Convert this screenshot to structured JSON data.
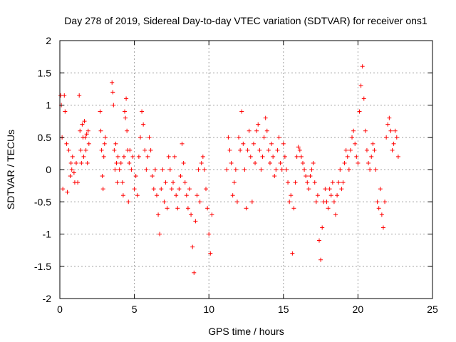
{
  "chart_data": {
    "type": "scatter",
    "title": "Day 278 of 2019, Sidereal Day-to-day VTEC variation (SDTVAR) for receiver ons1",
    "xlabel": "GPS time / hours",
    "ylabel": "SDTVAR / TECUs",
    "xlim": [
      0,
      25
    ],
    "ylim": [
      -2,
      2
    ],
    "xticks": [
      0,
      5,
      10,
      15,
      20,
      25
    ],
    "yticks": [
      -2,
      -1.5,
      -1,
      -0.5,
      0,
      0.5,
      1,
      1.5,
      2
    ],
    "grid": true,
    "marker": "+",
    "color": "#ff0000",
    "series": [
      {
        "name": "SDTVAR",
        "x": [
          0.05,
          0.1,
          0.15,
          0.2,
          0.3,
          0.35,
          0.45,
          0.5,
          0.6,
          0.7,
          0.75,
          0.8,
          0.85,
          0.95,
          1.0,
          1.1,
          1.2,
          1.3,
          1.35,
          1.4,
          1.45,
          1.5,
          1.55,
          1.6,
          1.65,
          1.7,
          1.75,
          1.8,
          1.85,
          1.9,
          1.95,
          2.7,
          2.75,
          2.8,
          2.85,
          2.9,
          2.95,
          3.0,
          3.05,
          3.5,
          3.55,
          3.6,
          3.65,
          3.7,
          3.75,
          3.8,
          3.85,
          3.9,
          4.0,
          4.1,
          4.2,
          4.25,
          4.3,
          4.35,
          4.4,
          4.45,
          4.5,
          4.55,
          4.6,
          4.65,
          4.7,
          4.8,
          4.9,
          5.0,
          5.1,
          5.2,
          5.3,
          5.4,
          5.5,
          5.6,
          5.7,
          5.8,
          5.9,
          6.0,
          6.1,
          6.2,
          6.3,
          6.4,
          6.5,
          6.6,
          6.7,
          6.8,
          6.9,
          7.0,
          7.1,
          7.2,
          7.3,
          7.4,
          7.5,
          7.6,
          7.7,
          7.8,
          7.9,
          8.0,
          8.1,
          8.2,
          8.3,
          8.4,
          8.5,
          8.6,
          8.7,
          8.8,
          8.9,
          9.0,
          9.1,
          9.2,
          9.3,
          9.4,
          9.5,
          9.6,
          9.7,
          9.8,
          9.9,
          10.0,
          10.1,
          10.2,
          11.2,
          11.3,
          11.4,
          11.5,
          11.6,
          11.7,
          11.8,
          11.9,
          12.0,
          12.1,
          12.2,
          12.3,
          12.4,
          12.5,
          12.6,
          12.7,
          12.8,
          12.9,
          13.0,
          13.1,
          13.2,
          13.3,
          13.4,
          13.5,
          13.6,
          13.7,
          13.8,
          13.9,
          14.0,
          14.1,
          14.2,
          14.3,
          14.4,
          14.5,
          14.6,
          14.7,
          14.8,
          14.9,
          15.0,
          15.1,
          15.2,
          15.3,
          15.4,
          15.5,
          15.6,
          15.7,
          15.8,
          15.9,
          16.0,
          16.1,
          16.2,
          16.3,
          16.4,
          16.5,
          16.6,
          16.7,
          16.8,
          16.9,
          17.0,
          17.1,
          17.2,
          17.3,
          17.4,
          17.5,
          17.6,
          17.7,
          17.8,
          17.9,
          18.0,
          18.1,
          18.2,
          18.3,
          18.4,
          18.5,
          18.6,
          18.7,
          18.8,
          18.9,
          19.0,
          19.1,
          19.2,
          19.3,
          19.4,
          19.5,
          19.6,
          19.7,
          19.8,
          19.9,
          20.0,
          20.1,
          20.2,
          20.3,
          20.4,
          20.5,
          20.6,
          20.7,
          20.8,
          20.9,
          21.0,
          21.1,
          21.2,
          21.3,
          21.4,
          21.5,
          21.6,
          21.7,
          21.8,
          21.9,
          22.0,
          22.1,
          22.2,
          22.3,
          22.4,
          22.5,
          22.6,
          22.7
        ],
        "y": [
          1.15,
          1.0,
          0.5,
          -0.3,
          1.15,
          0.9,
          0.4,
          -0.35,
          0.3,
          -0.1,
          0.1,
          0.0,
          0.2,
          -0.05,
          -0.2,
          0.1,
          -0.2,
          1.15,
          0.6,
          0.3,
          0.1,
          0.7,
          0.5,
          0.2,
          0.75,
          0.5,
          0.3,
          0.55,
          0.1,
          0.6,
          0.4,
          0.9,
          0.6,
          0.3,
          -0.1,
          -0.3,
          0.2,
          0.4,
          0.5,
          1.35,
          1.2,
          1.0,
          0.3,
          0.0,
          0.4,
          0.1,
          -0.2,
          0.2,
          0.0,
          0.1,
          -0.2,
          -0.4,
          0.2,
          0.9,
          0.8,
          1.1,
          0.6,
          0.3,
          -0.5,
          0.1,
          0.3,
          0.0,
          0.2,
          -0.3,
          -0.1,
          -0.4,
          0.2,
          0.5,
          0.9,
          0.7,
          0.3,
          0.0,
          0.2,
          0.5,
          0.3,
          -0.1,
          -0.3,
          0.0,
          -0.4,
          -0.7,
          -1.0,
          -0.3,
          0.0,
          -0.5,
          -0.2,
          -0.6,
          0.2,
          0.0,
          -0.3,
          -0.2,
          0.2,
          -0.4,
          -0.6,
          -0.3,
          -0.1,
          0.4,
          0.1,
          -0.2,
          -0.4,
          -0.6,
          -0.3,
          -0.7,
          -1.2,
          -1.6,
          -0.8,
          -0.4,
          0.0,
          -0.5,
          0.1,
          0.2,
          0.0,
          -0.3,
          -0.6,
          -1.0,
          -1.3,
          -0.7,
          0.0,
          0.5,
          0.3,
          0.1,
          -0.4,
          -0.2,
          0.0,
          -0.5,
          0.5,
          0.3,
          0.9,
          0.4,
          0.0,
          -0.6,
          0.3,
          0.6,
          0.2,
          -0.5,
          0.4,
          0.1,
          0.6,
          0.7,
          0.3,
          0.0,
          0.2,
          0.5,
          0.8,
          0.6,
          0.3,
          0.1,
          0.4,
          0.2,
          -0.1,
          0.0,
          0.3,
          0.5,
          0.1,
          0.0,
          0.4,
          0.2,
          0.0,
          -0.2,
          -0.5,
          -0.4,
          -1.3,
          -0.6,
          -0.2,
          0.2,
          0.35,
          0.3,
          0.2,
          0.1,
          0.0,
          -0.1,
          -0.2,
          -0.3,
          -0.1,
          0.0,
          0.1,
          -0.2,
          -0.5,
          -0.4,
          -1.1,
          -1.4,
          -0.9,
          -0.5,
          -0.3,
          -0.5,
          -0.6,
          -0.3,
          -0.4,
          -0.2,
          -0.5,
          -0.7,
          -0.4,
          -0.2,
          0.0,
          -0.3,
          -0.2,
          0.1,
          0.3,
          0.2,
          0.0,
          0.3,
          0.5,
          0.6,
          0.4,
          0.2,
          0.1,
          0.9,
          1.3,
          1.6,
          1.1,
          0.6,
          0.3,
          0.1,
          0.0,
          0.2,
          0.4,
          0.3,
          0.0,
          -0.5,
          -0.6,
          -0.3,
          -0.7,
          -0.9,
          -0.5,
          0.5,
          0.7,
          0.8,
          0.6,
          0.3,
          0.4,
          0.6,
          0.5,
          0.2
        ]
      }
    ]
  }
}
